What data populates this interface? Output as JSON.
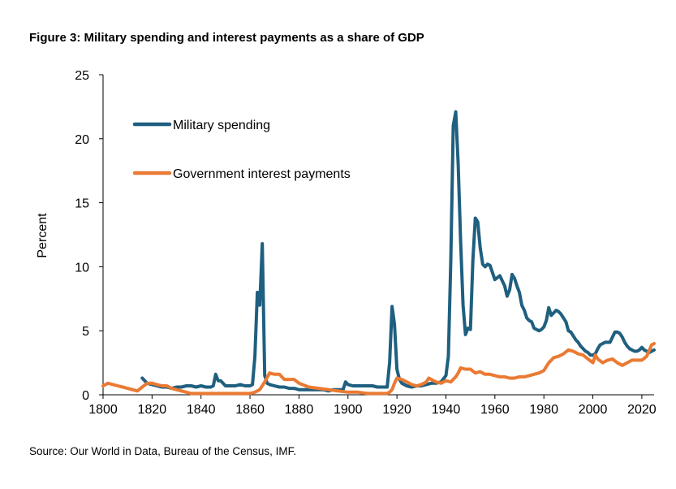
{
  "figure": {
    "title": "Figure 3: Military spending and interest payments as a share of GDP",
    "source": "Source: Our World in Data, Bureau of the Census, IMF."
  },
  "chart_data": {
    "type": "line",
    "title": "Figure 3: Military spending and interest payments as a share of GDP",
    "xlabel": "",
    "ylabel": "Percent",
    "xlim": [
      1800,
      2025
    ],
    "ylim": [
      0,
      25
    ],
    "xticks": [
      1800,
      1820,
      1840,
      1860,
      1880,
      1900,
      1920,
      1940,
      1960,
      1980,
      2000,
      2020
    ],
    "yticks": [
      0,
      5,
      10,
      15,
      20,
      25
    ],
    "grid": false,
    "legend": "upper-left",
    "series": [
      {
        "name": "Military spending",
        "color": "#1f5f7f",
        "x": [
          1816,
          1818,
          1820,
          1822,
          1824,
          1826,
          1828,
          1830,
          1832,
          1834,
          1836,
          1838,
          1840,
          1842,
          1844,
          1845,
          1846,
          1847,
          1848,
          1850,
          1852,
          1854,
          1856,
          1858,
          1860,
          1861,
          1862,
          1863,
          1864,
          1865,
          1866,
          1867,
          1868,
          1870,
          1872,
          1874,
          1876,
          1878,
          1880,
          1882,
          1884,
          1886,
          1888,
          1890,
          1892,
          1894,
          1896,
          1898,
          1899,
          1900,
          1902,
          1904,
          1906,
          1908,
          1910,
          1912,
          1914,
          1916,
          1917,
          1918,
          1919,
          1920,
          1921,
          1922,
          1924,
          1926,
          1928,
          1930,
          1932,
          1934,
          1936,
          1938,
          1940,
          1941,
          1942,
          1943,
          1944,
          1945,
          1946,
          1947,
          1948,
          1949,
          1950,
          1951,
          1952,
          1953,
          1954,
          1955,
          1956,
          1957,
          1958,
          1960,
          1962,
          1964,
          1965,
          1966,
          1967,
          1968,
          1969,
          1970,
          1971,
          1972,
          1973,
          1974,
          1975,
          1976,
          1977,
          1978,
          1979,
          1980,
          1981,
          1982,
          1983,
          1984,
          1985,
          1986,
          1987,
          1988,
          1989,
          1990,
          1991,
          1992,
          1993,
          1994,
          1995,
          1996,
          1997,
          1998,
          1999,
          2000,
          2001,
          2002,
          2003,
          2004,
          2005,
          2006,
          2007,
          2008,
          2009,
          2010,
          2011,
          2012,
          2013,
          2014,
          2015,
          2016,
          2017,
          2018,
          2019,
          2020,
          2021,
          2022,
          2023,
          2024,
          2025
        ],
        "values": [
          1.3,
          0.9,
          0.8,
          0.7,
          0.6,
          0.6,
          0.5,
          0.6,
          0.6,
          0.7,
          0.7,
          0.6,
          0.7,
          0.6,
          0.6,
          0.7,
          1.6,
          1.1,
          1.1,
          0.7,
          0.7,
          0.7,
          0.8,
          0.7,
          0.7,
          0.8,
          3.0,
          8.0,
          7.0,
          11.8,
          1.5,
          0.9,
          0.8,
          0.7,
          0.6,
          0.6,
          0.5,
          0.5,
          0.4,
          0.4,
          0.4,
          0.4,
          0.4,
          0.4,
          0.3,
          0.4,
          0.4,
          0.4,
          1.0,
          0.8,
          0.7,
          0.7,
          0.7,
          0.7,
          0.7,
          0.6,
          0.6,
          0.6,
          2.5,
          6.9,
          5.5,
          2.0,
          1.2,
          0.9,
          0.7,
          0.6,
          0.7,
          0.7,
          0.8,
          0.9,
          0.9,
          1.0,
          1.5,
          3.0,
          10.5,
          21.0,
          22.1,
          18.0,
          12.0,
          7.0,
          4.7,
          5.2,
          5.1,
          10.5,
          13.8,
          13.5,
          11.5,
          10.2,
          10.0,
          10.2,
          10.1,
          9.0,
          9.3,
          8.5,
          7.7,
          8.2,
          9.4,
          9.1,
          8.5,
          8.0,
          7.0,
          6.6,
          6.0,
          5.8,
          5.7,
          5.2,
          5.1,
          5.0,
          5.1,
          5.3,
          5.8,
          6.8,
          6.2,
          6.4,
          6.6,
          6.5,
          6.3,
          6.0,
          5.7,
          5.0,
          4.9,
          4.6,
          4.3,
          4.1,
          3.8,
          3.6,
          3.4,
          3.3,
          3.1,
          3.1,
          3.2,
          3.6,
          3.9,
          4.0,
          4.1,
          4.1,
          4.1,
          4.5,
          4.9,
          4.9,
          4.8,
          4.5,
          4.1,
          3.8,
          3.6,
          3.5,
          3.4,
          3.4,
          3.5,
          3.7,
          3.5,
          3.4,
          3.3,
          3.4,
          3.5
        ]
      },
      {
        "name": "Government interest payments",
        "color": "#ea7a33",
        "x": [
          1800,
          1802,
          1804,
          1806,
          1808,
          1810,
          1812,
          1814,
          1816,
          1818,
          1820,
          1822,
          1824,
          1826,
          1828,
          1830,
          1832,
          1834,
          1836,
          1840,
          1844,
          1848,
          1852,
          1856,
          1860,
          1862,
          1864,
          1866,
          1868,
          1870,
          1872,
          1874,
          1876,
          1878,
          1880,
          1884,
          1888,
          1892,
          1896,
          1900,
          1904,
          1908,
          1912,
          1916,
          1917,
          1918,
          1919,
          1920,
          1922,
          1924,
          1926,
          1928,
          1930,
          1932,
          1933,
          1934,
          1936,
          1938,
          1940,
          1942,
          1944,
          1945,
          1946,
          1948,
          1950,
          1952,
          1954,
          1956,
          1958,
          1960,
          1962,
          1964,
          1966,
          1968,
          1970,
          1972,
          1974,
          1976,
          1978,
          1980,
          1982,
          1984,
          1986,
          1988,
          1990,
          1992,
          1994,
          1996,
          1998,
          2000,
          2001,
          2002,
          2004,
          2006,
          2008,
          2010,
          2012,
          2014,
          2016,
          2018,
          2020,
          2022,
          2024,
          2025
        ],
        "values": [
          0.7,
          0.9,
          0.8,
          0.7,
          0.6,
          0.5,
          0.4,
          0.3,
          0.6,
          0.9,
          0.9,
          0.8,
          0.7,
          0.7,
          0.5,
          0.4,
          0.3,
          0.2,
          0.1,
          0.1,
          0.1,
          0.1,
          0.1,
          0.1,
          0.1,
          0.2,
          0.4,
          1.0,
          1.7,
          1.6,
          1.6,
          1.2,
          1.2,
          1.2,
          0.9,
          0.6,
          0.5,
          0.4,
          0.3,
          0.2,
          0.2,
          0.1,
          0.1,
          0.1,
          0.2,
          0.4,
          0.9,
          1.3,
          1.2,
          1.0,
          0.8,
          0.7,
          0.8,
          1.0,
          1.3,
          1.2,
          1.0,
          0.9,
          1.1,
          1.0,
          1.4,
          1.7,
          2.1,
          2.0,
          2.0,
          1.7,
          1.8,
          1.6,
          1.6,
          1.5,
          1.4,
          1.4,
          1.3,
          1.3,
          1.4,
          1.4,
          1.5,
          1.6,
          1.7,
          1.9,
          2.5,
          2.9,
          3.0,
          3.2,
          3.5,
          3.4,
          3.2,
          3.1,
          2.8,
          2.5,
          3.1,
          2.8,
          2.5,
          2.7,
          2.8,
          2.5,
          2.3,
          2.5,
          2.7,
          2.7,
          2.7,
          3.0,
          3.9,
          4.0
        ]
      }
    ]
  }
}
